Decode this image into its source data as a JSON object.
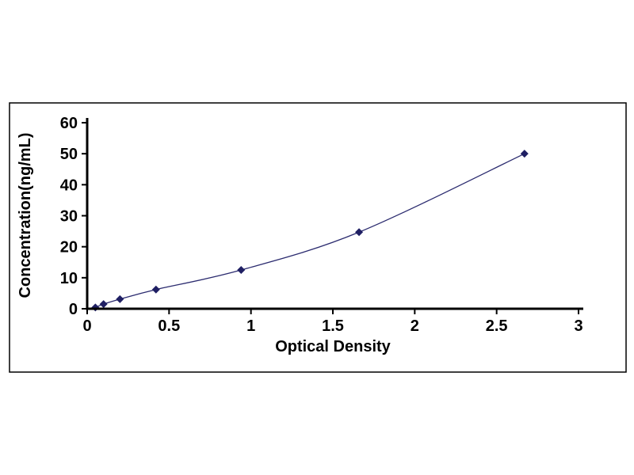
{
  "chart_data": {
    "type": "line",
    "title": "",
    "xlabel": "Optical Density",
    "ylabel": "Concentration(ng/mL)",
    "x": [
      0.05,
      0.1,
      0.2,
      0.42,
      0.94,
      1.66,
      2.67
    ],
    "y": [
      0.4,
      1.5,
      3.1,
      6.2,
      12.5,
      24.7,
      50
    ],
    "xlim": [
      0,
      3
    ],
    "ylim": [
      0,
      60
    ],
    "xticks": [
      0,
      0.5,
      1,
      1.5,
      2,
      2.5,
      3
    ],
    "yticks": [
      0,
      10,
      20,
      30,
      40,
      50,
      60
    ],
    "grid": false,
    "legend_position": "none",
    "marker": "diamond",
    "colors": {
      "line": "#2b2b6f",
      "marker": "#1f1f63",
      "axis": "#000000",
      "frame": "#000000",
      "background": "#ffffff"
    }
  }
}
